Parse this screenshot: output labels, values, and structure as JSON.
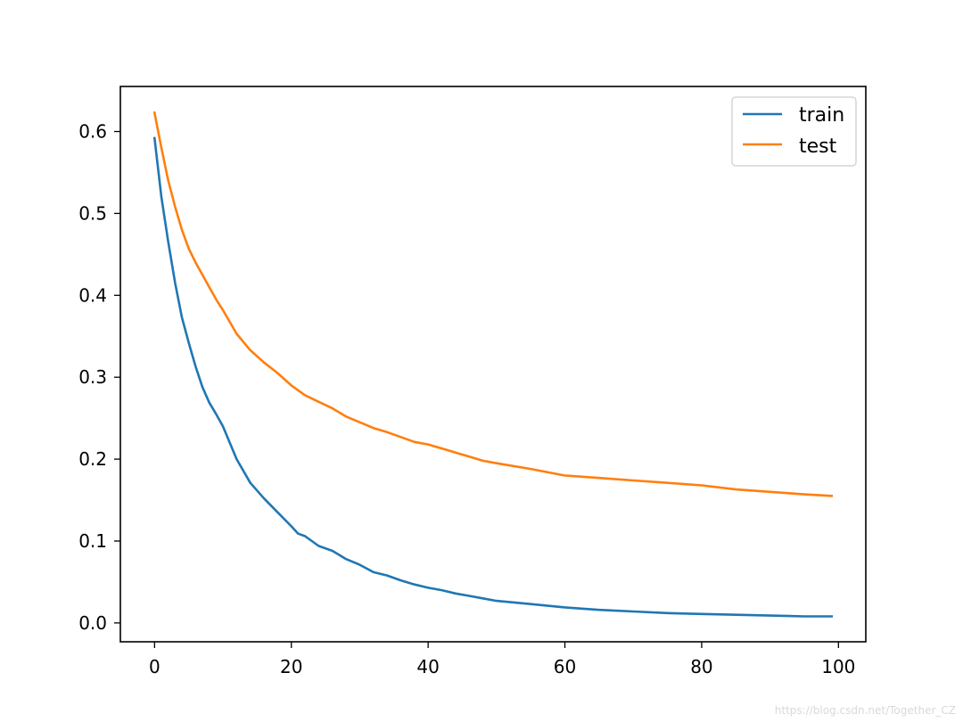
{
  "chart_data": {
    "type": "line",
    "xlim": [
      -5,
      104
    ],
    "ylim": [
      -0.023,
      0.655
    ],
    "x_ticks": [
      0,
      20,
      40,
      60,
      80,
      100
    ],
    "y_ticks": [
      0.0,
      0.1,
      0.2,
      0.3,
      0.4,
      0.5,
      0.6
    ],
    "x_tick_labels": [
      "0",
      "20",
      "40",
      "60",
      "80",
      "100"
    ],
    "y_tick_labels": [
      "0.0",
      "0.1",
      "0.2",
      "0.3",
      "0.4",
      "0.5",
      "0.6"
    ],
    "legend_position": "top-right",
    "grid": false,
    "series": [
      {
        "name": "train",
        "color": "#1f77b4",
        "x": [
          0,
          1,
          2,
          3,
          4,
          5,
          6,
          7,
          8,
          9,
          10,
          12,
          14,
          16,
          18,
          20,
          21,
          22,
          24,
          26,
          28,
          30,
          32,
          34,
          36,
          38,
          40,
          42,
          44,
          46,
          48,
          50,
          55,
          60,
          65,
          70,
          75,
          80,
          85,
          90,
          95,
          99
        ],
        "y": [
          0.592,
          0.52,
          0.465,
          0.415,
          0.373,
          0.342,
          0.313,
          0.288,
          0.269,
          0.255,
          0.24,
          0.2,
          0.171,
          0.152,
          0.135,
          0.118,
          0.109,
          0.106,
          0.094,
          0.088,
          0.078,
          0.071,
          0.062,
          0.058,
          0.052,
          0.047,
          0.043,
          0.04,
          0.036,
          0.033,
          0.03,
          0.027,
          0.023,
          0.019,
          0.016,
          0.014,
          0.012,
          0.011,
          0.01,
          0.009,
          0.008,
          0.008
        ]
      },
      {
        "name": "test",
        "color": "#ff7f0e",
        "x": [
          0,
          1,
          2,
          3,
          4,
          5,
          6,
          7,
          8,
          9,
          10,
          12,
          14,
          16,
          18,
          20,
          22,
          24,
          26,
          28,
          30,
          32,
          34,
          36,
          38,
          40,
          42,
          44,
          46,
          48,
          50,
          55,
          60,
          65,
          70,
          75,
          80,
          85,
          90,
          95,
          99
        ],
        "y": [
          0.623,
          0.58,
          0.54,
          0.508,
          0.48,
          0.457,
          0.44,
          0.425,
          0.41,
          0.395,
          0.382,
          0.353,
          0.333,
          0.318,
          0.305,
          0.29,
          0.278,
          0.27,
          0.262,
          0.252,
          0.245,
          0.238,
          0.233,
          0.227,
          0.221,
          0.218,
          0.213,
          0.208,
          0.203,
          0.198,
          0.195,
          0.188,
          0.18,
          0.177,
          0.174,
          0.171,
          0.168,
          0.163,
          0.16,
          0.157,
          0.155
        ]
      }
    ]
  },
  "watermark": "https://blog.csdn.net/Together_CZ"
}
